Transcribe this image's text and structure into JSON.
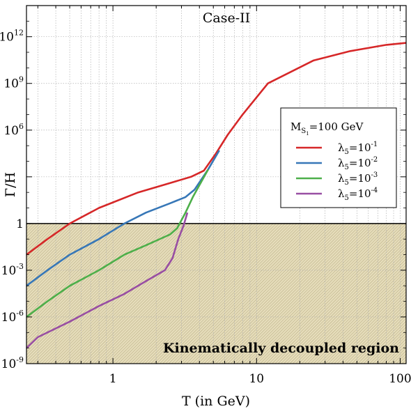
{
  "chart_data": {
    "type": "line",
    "title": "Case-II",
    "xlabel": "T (in GeV)",
    "ylabel": "Γ/H",
    "xscale": "log",
    "yscale": "log",
    "xlim": [
      0.25,
      110
    ],
    "ylim": [
      1e-09,
      100000000000000.0
    ],
    "grid": true,
    "x_ticks": [
      {
        "value": 1,
        "label": "1"
      },
      {
        "value": 10,
        "label": "10"
      },
      {
        "value": 100,
        "label": "100"
      }
    ],
    "y_ticks": [
      {
        "value": 1e-09,
        "base": "10",
        "exp": "-9"
      },
      {
        "value": 1e-06,
        "base": "10",
        "exp": "-6"
      },
      {
        "value": 0.001,
        "base": "10",
        "exp": "-3"
      },
      {
        "value": 1,
        "base": "1",
        "exp": ""
      },
      {
        "value": 1000000.0,
        "base": "10",
        "exp": "6"
      },
      {
        "value": 1000000000.0,
        "base": "10",
        "exp": "9"
      },
      {
        "value": 1000000000000.0,
        "base": "10",
        "exp": "12"
      }
    ],
    "threshold": {
      "y": 1,
      "color": "#000000"
    },
    "region_label": "Kinematically decoupled region",
    "region_color": "#e6ddbb",
    "legend": {
      "title_main": "M",
      "title_sub": "S",
      "title_subsub": "1",
      "title_rest": "=100 GeV",
      "placement": "right-center"
    },
    "series": [
      {
        "name_main": "λ",
        "name_sub": "5",
        "name_eq": "=10",
        "name_exp": "-1",
        "color": "#d62728",
        "x": [
          0.25,
          0.35,
          0.5,
          0.8,
          1.5,
          2.5,
          3.5,
          4.3,
          5.2,
          6.3,
          8,
          12,
          25,
          45,
          80,
          110
        ],
        "y": [
          0.01,
          0.1,
          1,
          10.0,
          100.0,
          400.0,
          1000.0,
          2500.0,
          30000.0,
          500000.0,
          10000000.0,
          1000000000.0,
          30000000000.0,
          120000000000.0,
          300000000000.0,
          400000000000.0
        ]
      },
      {
        "name_main": "λ",
        "name_sub": "5",
        "name_eq": "=10",
        "name_exp": "-2",
        "color": "#3777b7",
        "x": [
          0.25,
          0.35,
          0.5,
          0.8,
          1.2,
          1.7,
          2.5,
          3.2,
          3.7,
          4.6,
          5.5
        ],
        "y": [
          0.0001,
          0.001,
          0.01,
          0.1,
          1,
          5,
          20,
          50,
          150,
          3000.0,
          50000.0
        ]
      },
      {
        "name_main": "λ",
        "name_sub": "5",
        "name_eq": "=10",
        "name_exp": "-3",
        "color": "#4daf4a",
        "x": [
          0.25,
          0.35,
          0.5,
          0.8,
          1.2,
          1.7,
          2.5,
          2.8,
          3.2,
          3.6,
          4.6
        ],
        "y": [
          1e-06,
          1e-05,
          0.0001,
          0.001,
          0.01,
          0.04,
          0.2,
          0.5,
          5,
          50,
          3000.0
        ]
      },
      {
        "name_main": "λ",
        "name_sub": "5",
        "name_eq": "=10",
        "name_exp": "-4",
        "color": "#984ea3",
        "x": [
          0.25,
          0.3,
          0.5,
          0.8,
          1.2,
          1.7,
          2.3,
          2.6,
          2.85,
          3.1,
          3.3
        ],
        "y": [
          1e-08,
          5e-08,
          5e-07,
          5e-06,
          3e-05,
          0.0002,
          0.001,
          0.006,
          0.1,
          0.7,
          5
        ]
      }
    ]
  }
}
